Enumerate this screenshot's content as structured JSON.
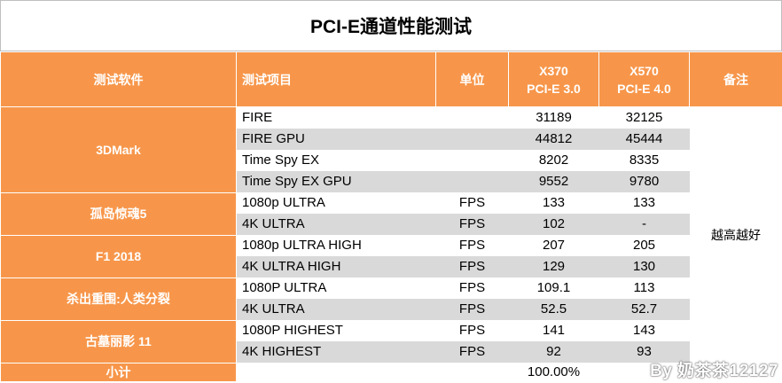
{
  "title": "PCI-E通道性能测试",
  "header": {
    "software": "测试软件",
    "item": "测试项目",
    "unit": "单位",
    "x370_line1": "X370",
    "x370_line2": "PCI-E 3.0",
    "x570_line1": "X570",
    "x570_line2": "PCI-E 4.0",
    "note": "备注"
  },
  "groups": [
    {
      "name": "3DMark",
      "rows": [
        {
          "item": "FIRE",
          "unit": "",
          "x370": "31189",
          "x570": "32125"
        },
        {
          "item": "FIRE GPU",
          "unit": "",
          "x370": "44812",
          "x570": "45444"
        },
        {
          "item": "Time Spy EX",
          "unit": "",
          "x370": "8202",
          "x570": "8335"
        },
        {
          "item": "Time Spy EX GPU",
          "unit": "",
          "x370": "9552",
          "x570": "9780"
        }
      ]
    },
    {
      "name": "孤岛惊魂5",
      "rows": [
        {
          "item": "1080p ULTRA",
          "unit": "FPS",
          "x370": "133",
          "x570": "133"
        },
        {
          "item": "4K ULTRA",
          "unit": "FPS",
          "x370": "102",
          "x570": "-"
        }
      ]
    },
    {
      "name": "F1 2018",
      "rows": [
        {
          "item": "1080p ULTRA HIGH",
          "unit": "FPS",
          "x370": "207",
          "x570": "205"
        },
        {
          "item": "4K ULTRA HIGH",
          "unit": "FPS",
          "x370": "129",
          "x570": "130"
        }
      ]
    },
    {
      "name": "杀出重围:人类分裂",
      "rows": [
        {
          "item": "1080P ULTRA",
          "unit": "FPS",
          "x370": "109.1",
          "x570": "113"
        },
        {
          "item": "4K ULTRA",
          "unit": "FPS",
          "x370": "52.5",
          "x570": "52.7"
        }
      ]
    },
    {
      "name": "古墓丽影 11",
      "rows": [
        {
          "item": "1080P HIGHEST",
          "unit": "FPS",
          "x370": "141",
          "x570": "143"
        },
        {
          "item": "4K HIGHEST",
          "unit": "FPS",
          "x370": "92",
          "x570": "93"
        }
      ]
    }
  ],
  "note_text": "越高越好",
  "summary": {
    "label": "小计",
    "x370": "100.00%"
  },
  "watermark": "By 奶茶茶12127"
}
